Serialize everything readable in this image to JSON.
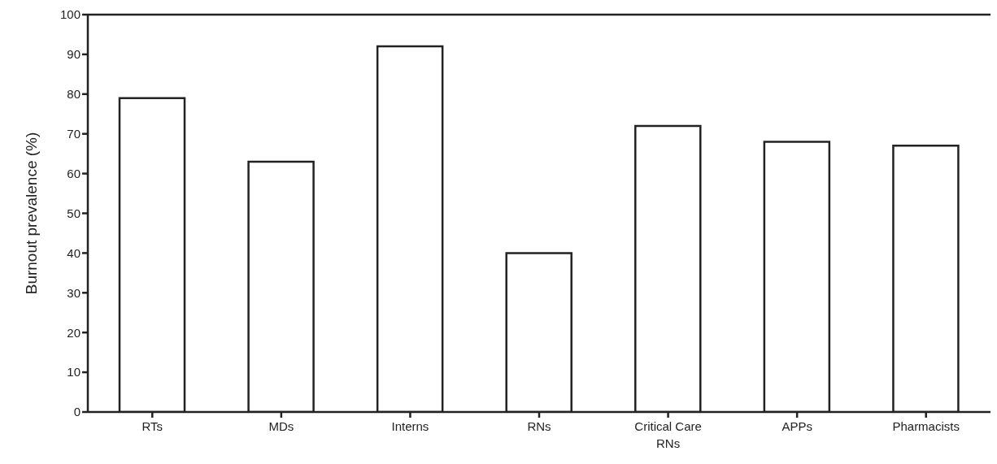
{
  "chart_data": {
    "type": "bar",
    "ylabel": "Burnout prevalence (%)",
    "categories": [
      "RTs",
      "MDs",
      "Interns",
      "RNs",
      "Critical Care RNs",
      "APPs",
      "Pharmacists"
    ],
    "values": [
      79,
      63,
      92,
      40,
      72,
      68,
      67
    ],
    "color": "#ffffff",
    "ylim": [
      0,
      100
    ],
    "yticks": [
      0,
      10,
      20,
      30,
      40,
      50,
      60,
      70,
      80,
      90,
      100
    ],
    "grid": false,
    "legend": false
  }
}
